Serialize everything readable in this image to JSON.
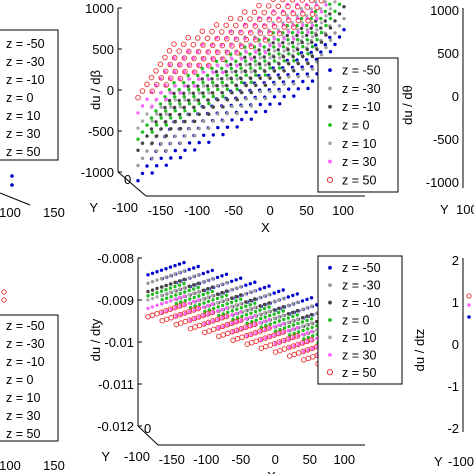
{
  "chart_data": [
    {
      "id": "top-middle",
      "type": "scatter",
      "zlabel": "du / dβ",
      "xlabel": "X",
      "ylabel_axis": "Y",
      "z_ticks": [
        "1000",
        "500",
        "0",
        "-500",
        "-1000"
      ],
      "z_range": [
        -1000,
        1000
      ],
      "x_ticks": [
        "-150",
        "-100",
        "-50",
        "0",
        "50",
        "100"
      ],
      "y_ticks": [
        "-100",
        "0"
      ],
      "legend": [
        "z = -50",
        "z = -30",
        "z = -10",
        "z = 0",
        "z = 10",
        "z = 30",
        "z = 50"
      ],
      "series": [
        {
          "name": "z = -50",
          "color": "#0000cc",
          "marker": "dot",
          "values_at_front": [
            -850,
            650
          ]
        },
        {
          "name": "z = -30",
          "color": "#999999",
          "marker": "dot",
          "values_at_front": [
            -750,
            700
          ]
        },
        {
          "name": "z = -10",
          "color": "#444444",
          "marker": "dot",
          "values_at_front": [
            -650,
            760
          ]
        },
        {
          "name": "z = 0",
          "color": "#22bb22",
          "marker": "dot",
          "values_at_front": [
            -600,
            790
          ]
        },
        {
          "name": "z = 10",
          "color": "#aaaaaa",
          "marker": "dot",
          "values_at_front": [
            -550,
            820
          ]
        },
        {
          "name": "z = 30",
          "color": "#ff66ff",
          "marker": "dot",
          "values_at_front": [
            -450,
            860
          ]
        },
        {
          "name": "z = 50",
          "color": "#ee3333",
          "marker": "circle",
          "values_at_front": [
            -350,
            900
          ]
        }
      ]
    },
    {
      "id": "bottom-middle",
      "type": "scatter",
      "zlabel": "du / dty",
      "xlabel": "X",
      "ylabel_axis": "Y",
      "z_ticks": [
        "-0.008",
        "-0.009",
        "-0.01",
        "-0.011",
        "-0.012"
      ],
      "z_range": [
        -0.012,
        -0.008
      ],
      "x_ticks": [
        "-150",
        "-100",
        "-50",
        "0",
        "50",
        "100"
      ],
      "y_ticks": [
        "-100",
        "0"
      ],
      "legend": [
        "z = -50",
        "z = -30",
        "z = -10",
        "z = 0",
        "z = 10",
        "z = 30",
        "z = 50"
      ],
      "series": [
        {
          "name": "z = -50",
          "color": "#0000cc",
          "marker": "dot",
          "values_at_front": [
            -0.0084,
            -0.0098
          ]
        },
        {
          "name": "z = -30",
          "color": "#999999",
          "marker": "dot",
          "values_at_front": [
            -0.0086,
            -0.01
          ]
        },
        {
          "name": "z = -10",
          "color": "#444444",
          "marker": "dot",
          "values_at_front": [
            -0.0088,
            -0.0102
          ]
        },
        {
          "name": "z = 0",
          "color": "#22bb22",
          "marker": "dot",
          "values_at_front": [
            -0.0089,
            -0.0103
          ]
        },
        {
          "name": "z = 10",
          "color": "#aaaaaa",
          "marker": "dot",
          "values_at_front": [
            -0.009,
            -0.0104
          ]
        },
        {
          "name": "z = 30",
          "color": "#ff66ff",
          "marker": "dot",
          "values_at_front": [
            -0.0092,
            -0.0106
          ]
        },
        {
          "name": "z = 50",
          "color": "#ee3333",
          "marker": "circle",
          "values_at_front": [
            -0.0094,
            -0.0108
          ]
        }
      ]
    },
    {
      "id": "top-left-partial",
      "type": "scatter",
      "x_ticks": [
        "100",
        "150"
      ],
      "legend": [
        "z = -50",
        "z = -30",
        "z = -10",
        "z = 0",
        "z = 10",
        "z = 30",
        "z = 50"
      ]
    },
    {
      "id": "bottom-left-partial",
      "type": "scatter",
      "x_ticks": [
        "100",
        "150"
      ],
      "legend": [
        "z = -50",
        "z = -30",
        "z = -10",
        "z = 0",
        "z = 10",
        "z = 30",
        "z = 50"
      ]
    },
    {
      "id": "top-right-partial",
      "type": "scatter",
      "zlabel": "du / dθ",
      "z_ticks": [
        "1000",
        "500",
        "0",
        "-500",
        "-1000"
      ],
      "y_ticks": [
        "Y",
        "100"
      ]
    },
    {
      "id": "bottom-right-partial",
      "type": "scatter",
      "zlabel": "du / dtz",
      "z_ticks": [
        "2",
        "1",
        "0",
        "-1",
        "-2"
      ],
      "y_ticks": [
        "Y",
        "-100"
      ]
    }
  ]
}
